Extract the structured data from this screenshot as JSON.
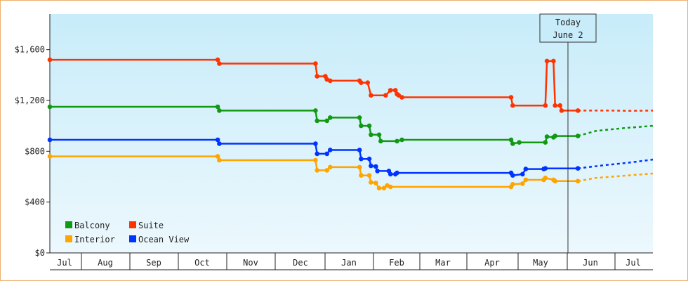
{
  "chart_data": {
    "type": "line",
    "x_unit": "date",
    "today_annotation": {
      "line1": "Today",
      "line2": "June 2",
      "date": "June 2"
    },
    "yaxis": {
      "ylim": [
        0,
        1880
      ],
      "ticks": [
        0,
        400,
        800,
        1200,
        1600
      ],
      "tick_labels": [
        "$0",
        "$400",
        "$800",
        "$1,200",
        "$1,600"
      ]
    },
    "xaxis": {
      "month_labels": [
        "Jul",
        "Aug",
        "Sep",
        "Oct",
        "Nov",
        "Dec",
        "Jan",
        "Feb",
        "Mar",
        "Apr",
        "May",
        "Jun",
        "Jul"
      ]
    },
    "legend": [
      "Balcony",
      "Suite",
      "Interior",
      "Ocean View"
    ],
    "colors": {
      "Suite": "#ff3300",
      "Balcony": "#119911",
      "Ocean View": "#0033ff",
      "Interior": "#ffa500",
      "background_top": "#c8ecfa",
      "background_bottom": "#ecf8fd",
      "frame": "#f0b070"
    },
    "series": [
      {
        "name": "Suite",
        "values": [
          [
            0,
            1520
          ],
          [
            103,
            1520
          ],
          [
            104,
            1490
          ],
          [
            163,
            1490
          ],
          [
            164,
            1390
          ],
          [
            169,
            1390
          ],
          [
            170,
            1365
          ],
          [
            172,
            1355
          ],
          [
            190,
            1355
          ],
          [
            191,
            1340
          ],
          [
            195,
            1340
          ],
          [
            197,
            1240
          ],
          [
            206,
            1240
          ],
          [
            209,
            1280
          ],
          [
            212,
            1280
          ],
          [
            213,
            1250
          ],
          [
            214,
            1240
          ],
          [
            216,
            1225
          ],
          [
            283,
            1225
          ],
          [
            284,
            1160
          ],
          [
            304,
            1160
          ],
          [
            305,
            1510
          ],
          [
            309,
            1510
          ],
          [
            310,
            1160
          ],
          [
            313,
            1160
          ],
          [
            314,
            1120
          ],
          [
            324,
            1120
          ]
        ],
        "forecast": [
          [
            324,
            1120
          ],
          [
            345,
            1120
          ],
          [
            355,
            1118
          ],
          [
            370,
            1120
          ]
        ]
      },
      {
        "name": "Balcony",
        "values": [
          [
            0,
            1150
          ],
          [
            103,
            1150
          ],
          [
            104,
            1120
          ],
          [
            163,
            1120
          ],
          [
            164,
            1040
          ],
          [
            170,
            1040
          ],
          [
            172,
            1065
          ],
          [
            190,
            1065
          ],
          [
            191,
            1000
          ],
          [
            196,
            1000
          ],
          [
            197,
            930
          ],
          [
            202,
            930
          ],
          [
            203,
            880
          ],
          [
            213,
            880
          ],
          [
            216,
            890
          ],
          [
            283,
            890
          ],
          [
            284,
            860
          ],
          [
            288,
            870
          ],
          [
            295,
            870
          ],
          [
            304,
            870
          ],
          [
            305,
            915
          ],
          [
            309,
            910
          ],
          [
            310,
            920
          ],
          [
            324,
            920
          ]
        ],
        "forecast": [
          [
            324,
            920
          ],
          [
            335,
            960
          ],
          [
            350,
            980
          ],
          [
            370,
            1000
          ]
        ]
      },
      {
        "name": "Ocean View",
        "values": [
          [
            0,
            890
          ],
          [
            103,
            890
          ],
          [
            104,
            860
          ],
          [
            163,
            860
          ],
          [
            164,
            780
          ],
          [
            170,
            780
          ],
          [
            172,
            810
          ],
          [
            190,
            810
          ],
          [
            191,
            740
          ],
          [
            196,
            740
          ],
          [
            197,
            685
          ],
          [
            200,
            680
          ],
          [
            201,
            645
          ],
          [
            208,
            645
          ],
          [
            209,
            620
          ],
          [
            212,
            620
          ],
          [
            213,
            630
          ],
          [
            283,
            630
          ],
          [
            284,
            610
          ],
          [
            290,
            620
          ],
          [
            292,
            660
          ],
          [
            303,
            660
          ],
          [
            304,
            665
          ],
          [
            310,
            665
          ],
          [
            324,
            665
          ]
        ],
        "forecast": [
          [
            324,
            665
          ],
          [
            340,
            690
          ],
          [
            355,
            710
          ],
          [
            370,
            735
          ]
        ]
      },
      {
        "name": "Interior",
        "values": [
          [
            0,
            760
          ],
          [
            103,
            760
          ],
          [
            104,
            730
          ],
          [
            163,
            730
          ],
          [
            164,
            650
          ],
          [
            170,
            650
          ],
          [
            172,
            675
          ],
          [
            190,
            675
          ],
          [
            191,
            610
          ],
          [
            196,
            610
          ],
          [
            197,
            555
          ],
          [
            200,
            550
          ],
          [
            202,
            510
          ],
          [
            205,
            510
          ],
          [
            207,
            530
          ],
          [
            209,
            520
          ],
          [
            283,
            520
          ],
          [
            284,
            540
          ],
          [
            290,
            545
          ],
          [
            292,
            575
          ],
          [
            303,
            575
          ],
          [
            304,
            590
          ],
          [
            309,
            575
          ],
          [
            310,
            565
          ],
          [
            324,
            565
          ]
        ],
        "forecast": [
          [
            324,
            565
          ],
          [
            335,
            590
          ],
          [
            350,
            605
          ],
          [
            370,
            625
          ]
        ]
      }
    ]
  }
}
